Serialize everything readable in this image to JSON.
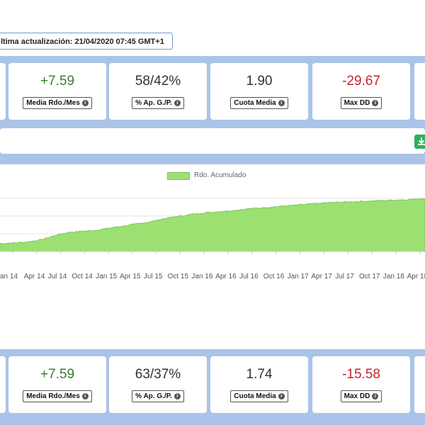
{
  "header": {
    "last_update": "ltima actualización: 21/04/2020 07:45 GMT+1"
  },
  "stats_top": [
    {
      "value": "+7.59",
      "label": "Media Rdo./Mes",
      "tone": "pos"
    },
    {
      "value": "58/42%",
      "label": "% Ap. G./P.",
      "tone": "neutral"
    },
    {
      "value": "1.90",
      "label": "Cuota Media",
      "tone": "neutral"
    },
    {
      "value": "-29.67",
      "label": "Max DD",
      "tone": "neg"
    }
  ],
  "stats_bottom": [
    {
      "value": "+7.59",
      "label": "Media Rdo./Mes",
      "tone": "pos"
    },
    {
      "value": "63/37%",
      "label": "% Ap. G./P.",
      "tone": "neutral"
    },
    {
      "value": "1.74",
      "label": "Cuota Media",
      "tone": "neutral"
    },
    {
      "value": "-15.58",
      "label": "Max DD",
      "tone": "neg"
    }
  ],
  "info_icon_glyph": "i",
  "download_button": {
    "icon": "download-icon",
    "color": "#2fb15a"
  },
  "chart_data": {
    "type": "area",
    "legend": [
      "Rdo. Acumulado"
    ],
    "legend_placement": "top-center",
    "color": "#9be070",
    "grid": true,
    "x_ticks": [
      "an 14",
      "Apr 14",
      "Jul 14",
      "Oct 14",
      "Jan 15",
      "Apr 15",
      "Jul 15",
      "Oct 15",
      "Jan 16",
      "Apr 16",
      "Jul 16",
      "Oct 16",
      "Jan 17",
      "Apr 17",
      "Jul 17",
      "Oct 17",
      "Jan 18",
      "Apr 18"
    ],
    "series": [
      {
        "name": "Rdo. Acumulado",
        "values": [
          15,
          16,
          18,
          22,
          30,
          36,
          38,
          40,
          44,
          48,
          52,
          56,
          62,
          66,
          70,
          73,
          75,
          77,
          80,
          82,
          84,
          86,
          88,
          90,
          92,
          93,
          94,
          95,
          96,
          97,
          98,
          100
        ]
      }
    ]
  }
}
